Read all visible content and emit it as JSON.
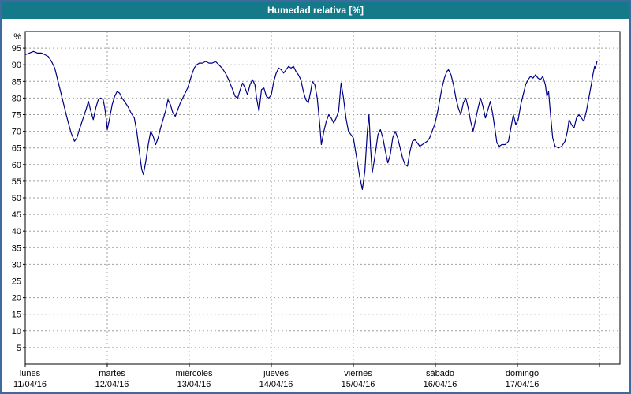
{
  "window": {
    "title": "Humedad relativa [%]",
    "colors": {
      "title_bar": "#147a8a",
      "title_text": "#ffffff",
      "frame_border": "#3f6a9e",
      "background": "#ffffff",
      "plot_border": "#000000",
      "grid": "#a0a0a0",
      "text": "#000000"
    }
  },
  "chart_data": {
    "type": "line",
    "title": "Humedad relativa [%]",
    "ylabel": "%",
    "ylim": [
      0,
      100
    ],
    "y_ticks": [
      5,
      10,
      15,
      20,
      25,
      30,
      35,
      40,
      45,
      50,
      55,
      60,
      65,
      70,
      75,
      80,
      85,
      90,
      95
    ],
    "xlim_days": [
      0,
      7.25
    ],
    "grid": true,
    "legend": "none",
    "x_axis_days": [
      {
        "name": "lunes",
        "date": "11/04/16"
      },
      {
        "name": "martes",
        "date": "12/04/16"
      },
      {
        "name": "miércoles",
        "date": "13/04/16"
      },
      {
        "name": "jueves",
        "date": "14/04/16"
      },
      {
        "name": "viernes",
        "date": "15/04/16"
      },
      {
        "name": "sábado",
        "date": "16/04/16"
      },
      {
        "name": "domingo",
        "date": "17/04/16"
      }
    ],
    "series": [
      {
        "name": "Humedad relativa",
        "color": "#000085",
        "points_day_value": [
          [
            0.0,
            93
          ],
          [
            0.05,
            93.5
          ],
          [
            0.1,
            94
          ],
          [
            0.15,
            93.5
          ],
          [
            0.2,
            93.5
          ],
          [
            0.24,
            93
          ],
          [
            0.28,
            92.5
          ],
          [
            0.32,
            91
          ],
          [
            0.36,
            89
          ],
          [
            0.4,
            85
          ],
          [
            0.44,
            81
          ],
          [
            0.48,
            77
          ],
          [
            0.52,
            73
          ],
          [
            0.56,
            69.5
          ],
          [
            0.6,
            67
          ],
          [
            0.63,
            68
          ],
          [
            0.66,
            70.5
          ],
          [
            0.7,
            73.5
          ],
          [
            0.74,
            76.5
          ],
          [
            0.77,
            79
          ],
          [
            0.8,
            76
          ],
          [
            0.83,
            73.5
          ],
          [
            0.86,
            77
          ],
          [
            0.89,
            79.5
          ],
          [
            0.92,
            80
          ],
          [
            0.95,
            79.5
          ],
          [
            0.97,
            77
          ],
          [
            0.99,
            73
          ],
          [
            1.0,
            70.5
          ],
          [
            1.03,
            74
          ],
          [
            1.06,
            78
          ],
          [
            1.09,
            80.5
          ],
          [
            1.12,
            82
          ],
          [
            1.15,
            81.5
          ],
          [
            1.18,
            80
          ],
          [
            1.21,
            79
          ],
          [
            1.25,
            77.5
          ],
          [
            1.29,
            75.5
          ],
          [
            1.33,
            74
          ],
          [
            1.36,
            70
          ],
          [
            1.39,
            64
          ],
          [
            1.42,
            58.5
          ],
          [
            1.44,
            57
          ],
          [
            1.47,
            61
          ],
          [
            1.5,
            66
          ],
          [
            1.53,
            70
          ],
          [
            1.56,
            68.5
          ],
          [
            1.59,
            66
          ],
          [
            1.62,
            68
          ],
          [
            1.65,
            71
          ],
          [
            1.68,
            73.5
          ],
          [
            1.71,
            76
          ],
          [
            1.74,
            79.5
          ],
          [
            1.77,
            78
          ],
          [
            1.8,
            75.5
          ],
          [
            1.83,
            74.5
          ],
          [
            1.86,
            76.5
          ],
          [
            1.89,
            78.5
          ],
          [
            1.92,
            80
          ],
          [
            1.95,
            81.5
          ],
          [
            1.98,
            83
          ],
          [
            2.0,
            84.5
          ],
          [
            2.03,
            87
          ],
          [
            2.06,
            89
          ],
          [
            2.09,
            90
          ],
          [
            2.12,
            90.5
          ],
          [
            2.16,
            90.5
          ],
          [
            2.2,
            91
          ],
          [
            2.24,
            90.5
          ],
          [
            2.28,
            90.5
          ],
          [
            2.32,
            91
          ],
          [
            2.36,
            90
          ],
          [
            2.4,
            89
          ],
          [
            2.44,
            87.5
          ],
          [
            2.48,
            85.5
          ],
          [
            2.52,
            83
          ],
          [
            2.56,
            80.5
          ],
          [
            2.59,
            80
          ],
          [
            2.62,
            82.5
          ],
          [
            2.65,
            84.5
          ],
          [
            2.68,
            83
          ],
          [
            2.71,
            81
          ],
          [
            2.74,
            84
          ],
          [
            2.77,
            85.5
          ],
          [
            2.8,
            84
          ],
          [
            2.82,
            80
          ],
          [
            2.85,
            76
          ],
          [
            2.88,
            82.5
          ],
          [
            2.91,
            83
          ],
          [
            2.94,
            80.5
          ],
          [
            2.97,
            80
          ],
          [
            3.0,
            81
          ],
          [
            3.03,
            85
          ],
          [
            3.06,
            87.5
          ],
          [
            3.09,
            89
          ],
          [
            3.12,
            88.5
          ],
          [
            3.15,
            87.5
          ],
          [
            3.18,
            88.5
          ],
          [
            3.21,
            89.5
          ],
          [
            3.24,
            89
          ],
          [
            3.27,
            89.5
          ],
          [
            3.3,
            88
          ],
          [
            3.33,
            87
          ],
          [
            3.36,
            85.5
          ],
          [
            3.39,
            82
          ],
          [
            3.42,
            79.5
          ],
          [
            3.45,
            78.5
          ],
          [
            3.48,
            82
          ],
          [
            3.5,
            85
          ],
          [
            3.53,
            84
          ],
          [
            3.56,
            80
          ],
          [
            3.59,
            72
          ],
          [
            3.61,
            66
          ],
          [
            3.64,
            70
          ],
          [
            3.67,
            73
          ],
          [
            3.7,
            75
          ],
          [
            3.73,
            74
          ],
          [
            3.76,
            72.5
          ],
          [
            3.79,
            74
          ],
          [
            3.82,
            76
          ],
          [
            3.85,
            84.5
          ],
          [
            3.88,
            80
          ],
          [
            3.91,
            74
          ],
          [
            3.94,
            70
          ],
          [
            3.97,
            69
          ],
          [
            4.0,
            68
          ],
          [
            4.04,
            62
          ],
          [
            4.08,
            56
          ],
          [
            4.11,
            52.5
          ],
          [
            4.14,
            58
          ],
          [
            4.17,
            70
          ],
          [
            4.19,
            75
          ],
          [
            4.21,
            65
          ],
          [
            4.23,
            57.5
          ],
          [
            4.26,
            62
          ],
          [
            4.3,
            69
          ],
          [
            4.33,
            70.5
          ],
          [
            4.36,
            68
          ],
          [
            4.39,
            64
          ],
          [
            4.42,
            60.5
          ],
          [
            4.45,
            63
          ],
          [
            4.48,
            68
          ],
          [
            4.51,
            70
          ],
          [
            4.54,
            68
          ],
          [
            4.57,
            65
          ],
          [
            4.6,
            62
          ],
          [
            4.63,
            60
          ],
          [
            4.66,
            59.5
          ],
          [
            4.69,
            64
          ],
          [
            4.72,
            67
          ],
          [
            4.75,
            67.5
          ],
          [
            4.78,
            66.5
          ],
          [
            4.81,
            65.5
          ],
          [
            4.84,
            66
          ],
          [
            4.87,
            66.5
          ],
          [
            4.9,
            67
          ],
          [
            4.93,
            68
          ],
          [
            4.96,
            70
          ],
          [
            4.99,
            72
          ],
          [
            5.02,
            75
          ],
          [
            5.05,
            79
          ],
          [
            5.08,
            83
          ],
          [
            5.11,
            86
          ],
          [
            5.14,
            88
          ],
          [
            5.16,
            88.5
          ],
          [
            5.19,
            87
          ],
          [
            5.22,
            84
          ],
          [
            5.25,
            80
          ],
          [
            5.28,
            77
          ],
          [
            5.31,
            75
          ],
          [
            5.34,
            78.5
          ],
          [
            5.37,
            80
          ],
          [
            5.4,
            77
          ],
          [
            5.43,
            73
          ],
          [
            5.46,
            70
          ],
          [
            5.49,
            73.5
          ],
          [
            5.52,
            77
          ],
          [
            5.55,
            80
          ],
          [
            5.58,
            77.5
          ],
          [
            5.61,
            74
          ],
          [
            5.64,
            76.5
          ],
          [
            5.67,
            79
          ],
          [
            5.7,
            75
          ],
          [
            5.73,
            70
          ],
          [
            5.75,
            66.5
          ],
          [
            5.78,
            65.5
          ],
          [
            5.81,
            66
          ],
          [
            5.85,
            66
          ],
          [
            5.89,
            67
          ],
          [
            5.92,
            71
          ],
          [
            5.95,
            75
          ],
          [
            5.98,
            72
          ],
          [
            6.01,
            73.5
          ],
          [
            6.04,
            78
          ],
          [
            6.07,
            81
          ],
          [
            6.1,
            84
          ],
          [
            6.13,
            85.5
          ],
          [
            6.16,
            86.5
          ],
          [
            6.19,
            86
          ],
          [
            6.22,
            87
          ],
          [
            6.25,
            86
          ],
          [
            6.28,
            85.5
          ],
          [
            6.31,
            86.5
          ],
          [
            6.34,
            84
          ],
          [
            6.36,
            80.5
          ],
          [
            6.38,
            82
          ],
          [
            6.4,
            76
          ],
          [
            6.43,
            68
          ],
          [
            6.46,
            65.5
          ],
          [
            6.5,
            65
          ],
          [
            6.54,
            65.5
          ],
          [
            6.58,
            67
          ],
          [
            6.61,
            70
          ],
          [
            6.63,
            73.5
          ],
          [
            6.66,
            72
          ],
          [
            6.69,
            71
          ],
          [
            6.72,
            74
          ],
          [
            6.75,
            75
          ],
          [
            6.78,
            74
          ],
          [
            6.81,
            73
          ],
          [
            6.84,
            76
          ],
          [
            6.87,
            80
          ],
          [
            6.9,
            84
          ],
          [
            6.92,
            87
          ],
          [
            6.94,
            89.5
          ],
          [
            6.95,
            89
          ],
          [
            6.97,
            91
          ]
        ]
      }
    ]
  }
}
